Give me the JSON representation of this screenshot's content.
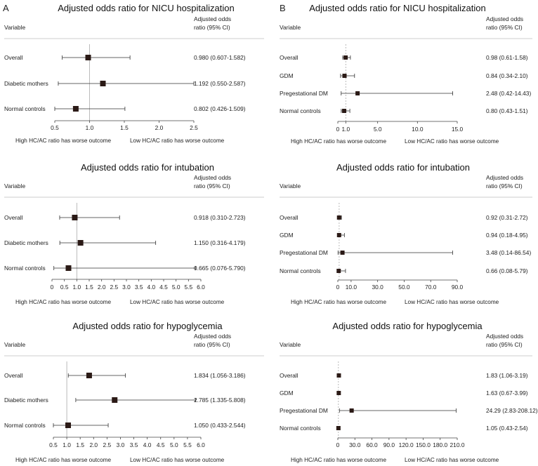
{
  "panel_labels": [
    "A",
    "B"
  ],
  "headers": {
    "variable": "Variable",
    "or_line1": "Adjusted odds",
    "or_line2": "ratio (95% CI)"
  },
  "footers": {
    "left": "High HC/AC ratio has worse outcome",
    "right": "Low HC/AC ratio has worse outcome"
  },
  "colors": {
    "marker": "#2b1a16",
    "line": "#333333",
    "refline": "#aaaaaa"
  },
  "chart_data": [
    {
      "type": "forest",
      "panel": "A",
      "title": "Adjusted odds ratio for NICU hospitalization",
      "ylabel": "Variable",
      "xlabel": "",
      "reference": 1.0,
      "xlim": [
        0.5,
        2.5
      ],
      "ticks": [
        0.5,
        1.0,
        1.5,
        2.0,
        2.5
      ],
      "tick_labels": [
        "0.5",
        "1.0",
        "1.5",
        "2.0",
        "2.5"
      ],
      "rows": [
        {
          "label": "Overall",
          "or": 0.98,
          "lo": 0.607,
          "hi": 1.582,
          "text": "0.980 (0.607-1.582)"
        },
        {
          "label": "Diabetic mothers",
          "or": 1.192,
          "lo": 0.55,
          "hi": 2.587,
          "text": "1.192 (0.550-2.587)"
        },
        {
          "label": "Normal controls",
          "or": 0.802,
          "lo": 0.426,
          "hi": 1.509,
          "text": "0.802 (0.426-1.509)"
        }
      ]
    },
    {
      "type": "forest",
      "panel": "A",
      "title": "Adjusted odds ratio for intubation",
      "ylabel": "Variable",
      "xlabel": "",
      "reference": 1.0,
      "xlim": [
        0,
        6.0
      ],
      "ticks": [
        0,
        0.5,
        1.0,
        1.5,
        2.0,
        2.5,
        3.0,
        3.5,
        4.0,
        4.5,
        5.0,
        5.5,
        6.0
      ],
      "tick_labels": [
        "0",
        "0.5",
        "1.0",
        "1.5",
        "2.0",
        "2.5",
        "3.0",
        "3.5",
        "4.0",
        "4.5",
        "5.0",
        "5.5",
        "6.0"
      ],
      "rows": [
        {
          "label": "Overall",
          "or": 0.918,
          "lo": 0.31,
          "hi": 2.723,
          "text": "0.918 (0.310-2.723)"
        },
        {
          "label": "Diabetic mothers",
          "or": 1.15,
          "lo": 0.316,
          "hi": 4.179,
          "text": "1.150 (0.316-4.179)"
        },
        {
          "label": "Normal controls",
          "or": 0.665,
          "lo": 0.076,
          "hi": 5.79,
          "text": "0.665 (0.076-5.790)"
        }
      ]
    },
    {
      "type": "forest",
      "panel": "A",
      "title": "Adjusted odds ratio for hypoglycemia",
      "ylabel": "Variable",
      "xlabel": "",
      "reference": 1.0,
      "xlim": [
        0.5,
        6.0
      ],
      "ticks": [
        0.5,
        1.0,
        1.5,
        2.0,
        2.5,
        3.0,
        3.5,
        4.0,
        4.5,
        5.0,
        5.5,
        6.0
      ],
      "tick_labels": [
        "0.5",
        "1.0",
        "1.5",
        "2.0",
        "2.5",
        "3.0",
        "3.5",
        "4.0",
        "4.5",
        "5.0",
        "5.5",
        "6.0"
      ],
      "rows": [
        {
          "label": "Overall",
          "or": 1.834,
          "lo": 1.056,
          "hi": 3.186,
          "text": "1.834 (1.056-3.186)"
        },
        {
          "label": "Diabetic mothers",
          "or": 2.785,
          "lo": 1.335,
          "hi": 5.808,
          "text": "2.785 (1.335-5.808)"
        },
        {
          "label": "Normal controls",
          "or": 1.05,
          "lo": 0.433,
          "hi": 2.544,
          "text": "1.050 (0.433-2.544)"
        }
      ]
    },
    {
      "type": "forest",
      "panel": "B",
      "title": "Adjusted odds ratio for NICU hospitalization",
      "ylabel": "Variable",
      "xlabel": "",
      "reference": 1.0,
      "xlim": [
        0,
        15.0
      ],
      "ticks": [
        0,
        1.0,
        5.0,
        10.0,
        15.0
      ],
      "tick_labels": [
        "0",
        "1.0",
        "5.0",
        "10.0",
        "15.0"
      ],
      "rows": [
        {
          "label": "Overall",
          "or": 0.98,
          "lo": 0.61,
          "hi": 1.58,
          "text": "0.98 (0.61-1.58)"
        },
        {
          "label": "GDM",
          "or": 0.84,
          "lo": 0.34,
          "hi": 2.1,
          "text": "0.84 (0.34-2.10)"
        },
        {
          "label": "Pregestational DM",
          "or": 2.48,
          "lo": 0.42,
          "hi": 14.43,
          "text": "2.48 (0.42-14.43)"
        },
        {
          "label": "Normal controls",
          "or": 0.8,
          "lo": 0.43,
          "hi": 1.51,
          "text": "0.80 (0.43-1.51)"
        }
      ]
    },
    {
      "type": "forest",
      "panel": "B",
      "title": "Adjusted odds ratio for intubation",
      "ylabel": "Variable",
      "xlabel": "",
      "reference": 1.0,
      "xlim": [
        0,
        90.0
      ],
      "ticks": [
        0,
        10.0,
        30.0,
        50.0,
        70.0,
        90.0
      ],
      "tick_labels": [
        "0",
        "10.0",
        "30.0",
        "50.0",
        "70.0",
        "90.0"
      ],
      "rows": [
        {
          "label": "Overall",
          "or": 0.92,
          "lo": 0.31,
          "hi": 2.72,
          "text": "0.92 (0.31-2.72)"
        },
        {
          "label": "GDM",
          "or": 0.94,
          "lo": 0.18,
          "hi": 4.95,
          "text": "0.94 (0.18-4.95)"
        },
        {
          "label": "Pregestational DM",
          "or": 3.48,
          "lo": 0.14,
          "hi": 86.54,
          "text": "3.48 (0.14-86.54)"
        },
        {
          "label": "Normal controls",
          "or": 0.66,
          "lo": 0.08,
          "hi": 5.79,
          "text": "0.66 (0.08-5.79)"
        }
      ]
    },
    {
      "type": "forest",
      "panel": "B",
      "title": "Adjusted odds ratio for hypoglycemia",
      "ylabel": "Variable",
      "xlabel": "",
      "reference": 1.0,
      "xlim": [
        0,
        210.0
      ],
      "ticks": [
        0,
        30.0,
        60.0,
        90.0,
        120.0,
        150.0,
        180.0,
        210.0
      ],
      "tick_labels": [
        "0",
        "30.0",
        "60.0",
        "90.0",
        "120.0",
        "150.0",
        "180.0",
        "210.0"
      ],
      "rows": [
        {
          "label": "Overall",
          "or": 1.83,
          "lo": 1.06,
          "hi": 3.19,
          "text": "1.83 (1.06-3.19)"
        },
        {
          "label": "GDM",
          "or": 1.63,
          "lo": 0.67,
          "hi": 3.99,
          "text": "1.63 (0.67-3.99)"
        },
        {
          "label": "Pregestational DM",
          "or": 24.29,
          "lo": 2.83,
          "hi": 208.12,
          "text": "24.29 (2.83-208.12)"
        },
        {
          "label": "Normal controls",
          "or": 1.05,
          "lo": 0.43,
          "hi": 2.54,
          "text": "1.05 (0.43-2.54)"
        }
      ]
    }
  ]
}
